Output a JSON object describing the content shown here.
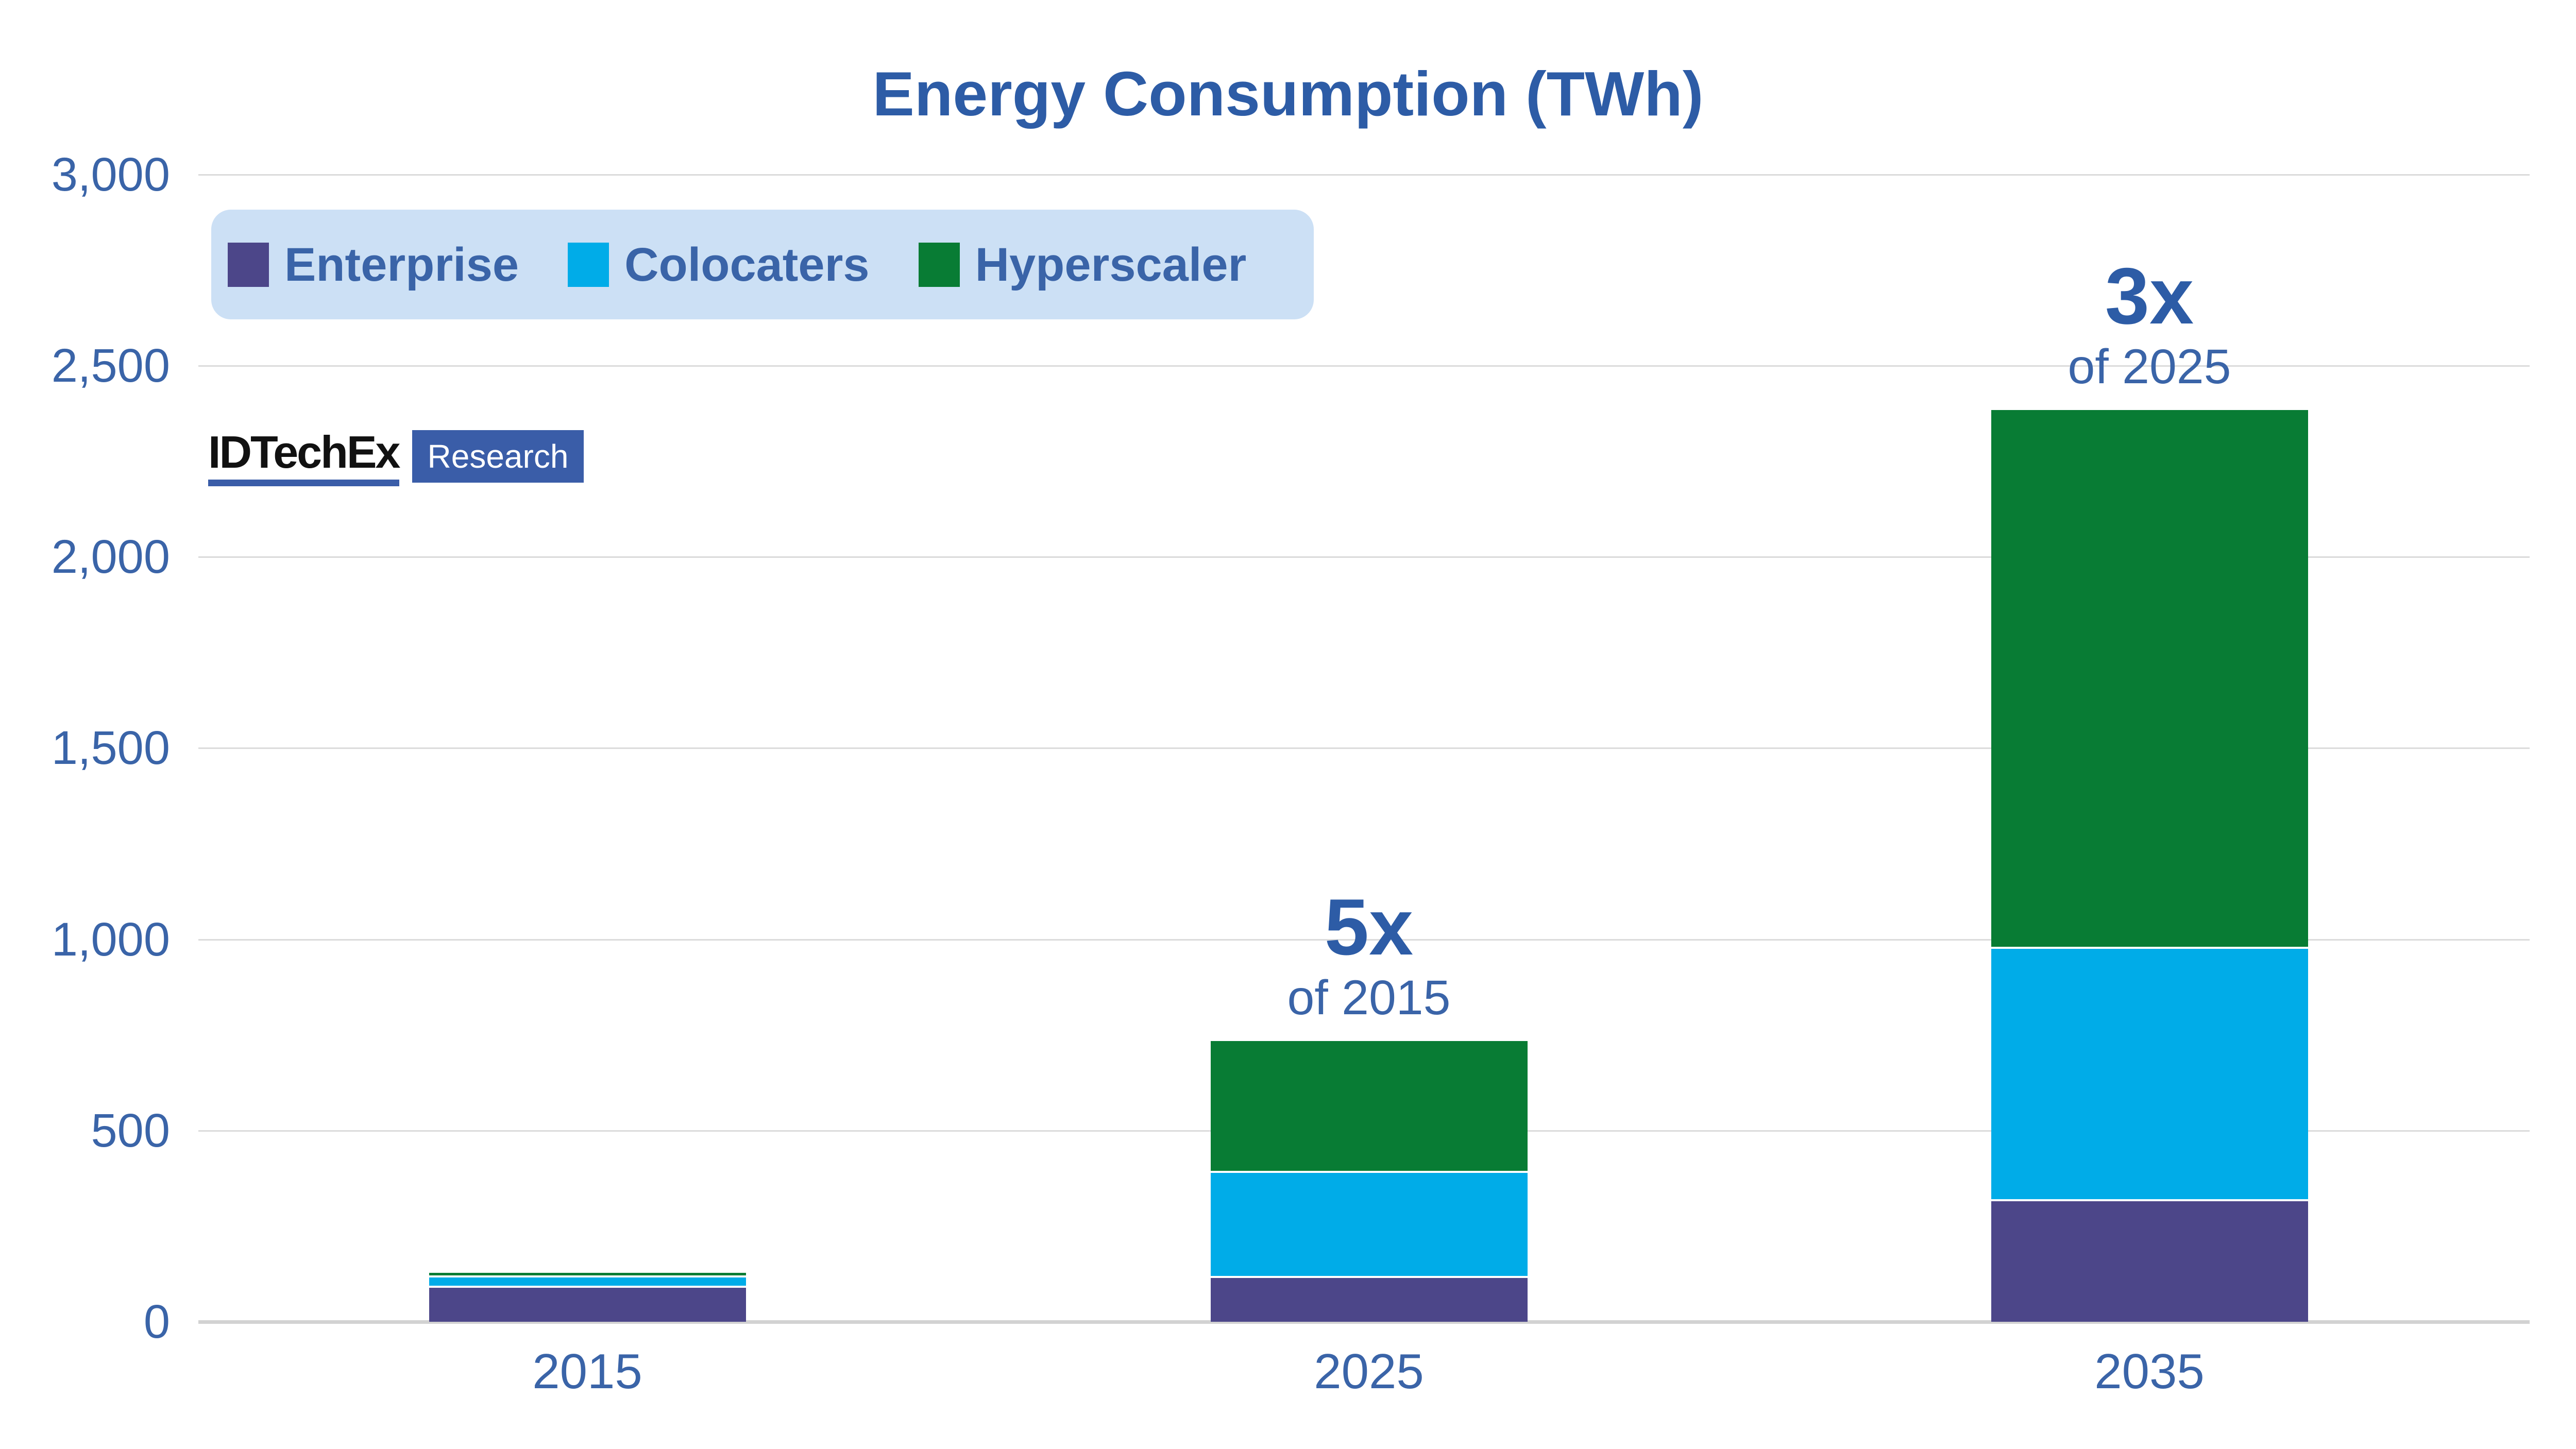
{
  "title": "Energy Consumption (TWh)",
  "logo": {
    "brand": "IDTechEx",
    "tag": "Research"
  },
  "colors": {
    "background": "#FFFFFF",
    "accent_dark": "#2D5CA6",
    "accent": "#3A64A8",
    "legend_bg": "#CCE0F5",
    "gridline": "#DBDBDB",
    "axis_line": "#D2D2D2",
    "logo_blue": "#3A5DA8",
    "logo_text": "#111111",
    "enterprise": "#4C4689",
    "colocaters": "#00ACE8",
    "hyperscaler": "#087C34"
  },
  "chart_data": {
    "type": "bar",
    "stacked": true,
    "title": "Energy Consumption (TWh)",
    "categories": [
      "2015",
      "2025",
      "2035"
    ],
    "series": [
      {
        "name": "Enterprise",
        "color": "#4C4689",
        "values": [
          95,
          120,
          320
        ]
      },
      {
        "name": "Colocaters",
        "color": "#00ACE8",
        "values": [
          27,
          275,
          660
        ]
      },
      {
        "name": "Hyperscaler",
        "color": "#087C34",
        "values": [
          12,
          345,
          1410
        ]
      }
    ],
    "totals": [
      134,
      740,
      2390
    ],
    "yticks": [
      0,
      500,
      1000,
      1500,
      2000,
      2500,
      3000
    ],
    "ytick_labels": [
      "0",
      "500",
      "1,000",
      "1,500",
      "2,000",
      "2,500",
      "3,000"
    ],
    "ylim": [
      0,
      3000
    ],
    "xlabel": "",
    "ylabel": "",
    "grid": true,
    "legend_position": "top-left",
    "annotations": [
      {
        "category": "2025",
        "headline": "5x",
        "subline": "of 2015"
      },
      {
        "category": "2035",
        "headline": "3x",
        "subline": "of 2025"
      }
    ]
  }
}
